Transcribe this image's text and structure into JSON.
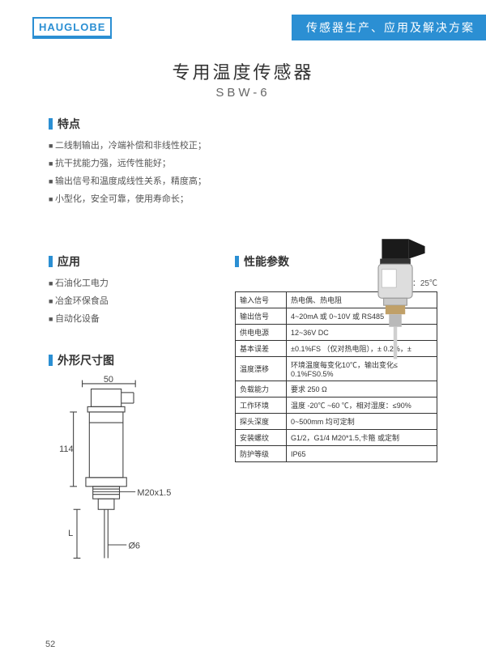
{
  "header": {
    "logo": "HAUGLOBE",
    "banner": "传感器生产、应用及解决方案"
  },
  "title": "专用温度传感器",
  "subtitle": "SBW-6",
  "sections": {
    "features_hdr": "特点",
    "apps_hdr": "应用",
    "params_hdr": "性能参数",
    "dims_hdr": "外形尺寸图"
  },
  "features": [
    "二线制输出，冷端补偿和非线性校正；",
    "抗干扰能力强，远传性能好；",
    "输出信号和温度成线性关系，精度高；",
    "小型化，安全可靠，使用寿命长；"
  ],
  "apps": [
    "石油化工电力",
    "冶金环保食品",
    "自动化设备"
  ],
  "ref_temp": "参考温度：25℃",
  "spec_rows": [
    [
      "输入信号",
      "热电偶、热电阻"
    ],
    [
      "输出信号",
      "4~20mA 或 0~10V 或 RS485"
    ],
    [
      "供电电源",
      "12~36V DC"
    ],
    [
      "基本误差",
      "±0.1%FS （仅对热电阻），± 0.2%，±"
    ],
    [
      "温度漂移",
      "环境温度每变化10℃，输出变化≤ 0.1%FS0.5%"
    ],
    [
      "负载能力",
      "要求 250 Ω"
    ],
    [
      "工作环境",
      "温度 -20℃ ~60 ℃，相对湿度：≤90%"
    ],
    [
      "探头深度",
      "0~500mm 均可定制"
    ],
    [
      "安装螺纹",
      "G1/2，G1/4 M20*1.5,卡箍 或定制"
    ],
    [
      "防护等级",
      "IP65"
    ]
  ],
  "dims": {
    "w50": "50",
    "h114": "114",
    "L": "L",
    "thread": "M20x1.5",
    "dia": "Ø6"
  },
  "page": "52",
  "colors": {
    "brand": "#2b8fd3",
    "text": "#333333",
    "border": "#333333"
  }
}
